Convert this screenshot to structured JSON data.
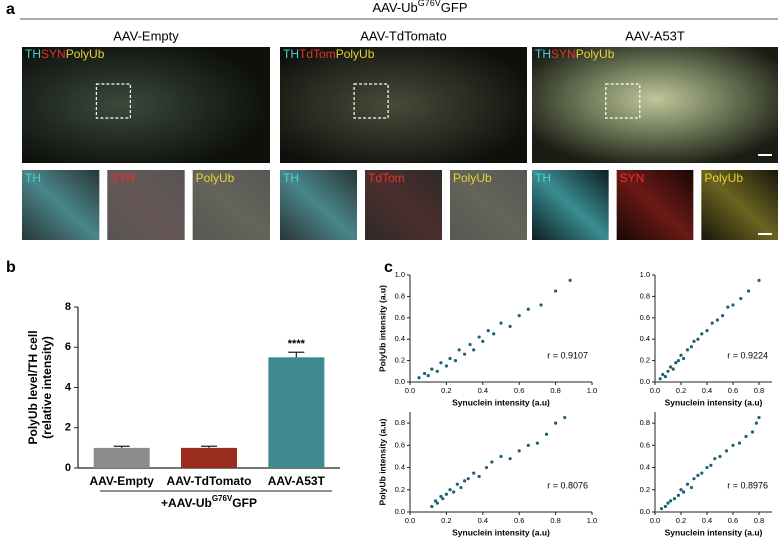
{
  "panel_a": {
    "label": "a",
    "header": "AAV-Ub",
    "header_sup": "G76V",
    "header_suffix": "GFP",
    "columns": [
      {
        "title": "AAV-Empty",
        "overlay": [
          "TH",
          "SYN",
          "PolyUb"
        ],
        "insets": [
          "TH",
          "SYN",
          "PolyUb"
        ]
      },
      {
        "title": "AAV-TdTomato",
        "overlay": [
          "TH",
          "TdTom",
          "PolyUb"
        ],
        "insets": [
          "TH",
          "TdTom",
          "PolyUb"
        ]
      },
      {
        "title": "AAV-A53T",
        "overlay": [
          "TH",
          "SYN",
          "PolyUb"
        ],
        "insets": [
          "TH",
          "SYN",
          "PolyUb"
        ]
      }
    ]
  },
  "chart_data": [
    {
      "type": "bar",
      "label": "b",
      "y_label": [
        "PolyUb level/TH cell",
        "(relative intensity)"
      ],
      "categories": [
        "AAV-Empty",
        "AAV-TdTomato",
        "AAV-A53T"
      ],
      "values": [
        1.0,
        1.0,
        5.5
      ],
      "errors": [
        0.08,
        0.08,
        0.25
      ],
      "colors": [
        "#8c8c8c",
        "#9b2d1f",
        "#3e8a8f"
      ],
      "annotations": [
        null,
        null,
        "****"
      ],
      "group_label": "+AAV-Ub",
      "group_label_sup": "G76V",
      "group_label_suffix": "GFP",
      "ylim": [
        0,
        8
      ],
      "yticks": [
        0,
        2,
        4,
        6,
        8
      ]
    },
    {
      "type": "scatter",
      "label": "c",
      "x_label": "Synuclein intensity (a.u)",
      "y_label": "PolyUb intensity (a.u)",
      "annotation": "r = 0.9107",
      "color": "#1f5f7a",
      "x": [
        0.05,
        0.08,
        0.1,
        0.12,
        0.15,
        0.17,
        0.2,
        0.22,
        0.25,
        0.27,
        0.3,
        0.33,
        0.35,
        0.38,
        0.4,
        0.43,
        0.46,
        0.5,
        0.55,
        0.6,
        0.65,
        0.72,
        0.8,
        0.88
      ],
      "y": [
        0.04,
        0.08,
        0.06,
        0.12,
        0.1,
        0.18,
        0.15,
        0.22,
        0.2,
        0.3,
        0.26,
        0.35,
        0.3,
        0.42,
        0.38,
        0.48,
        0.45,
        0.55,
        0.52,
        0.62,
        0.68,
        0.72,
        0.85,
        0.95
      ],
      "xlim": [
        0,
        1
      ],
      "xticks": [
        {
          "value": 0,
          "label": "0.0"
        },
        0.2,
        0.4,
        0.6,
        0.8,
        {
          "value": 1,
          "label": "1.0"
        }
      ],
      "ylim": [
        0,
        1
      ],
      "yticks": [
        {
          "value": 0,
          "label": "0.0"
        },
        0.2,
        0.4,
        0.6,
        0.8,
        {
          "value": 1,
          "label": "1.0"
        }
      ]
    },
    {
      "type": "scatter",
      "x_label": "Synuclein intensity (a.u)",
      "annotation": "r = 0.9224",
      "color": "#1f5f7a",
      "x": [
        0.04,
        0.06,
        0.08,
        0.1,
        0.12,
        0.14,
        0.16,
        0.18,
        0.2,
        0.22,
        0.25,
        0.28,
        0.3,
        0.33,
        0.36,
        0.4,
        0.44,
        0.48,
        0.52,
        0.56,
        0.6,
        0.66,
        0.72,
        0.8
      ],
      "y": [
        0.03,
        0.07,
        0.05,
        0.1,
        0.14,
        0.12,
        0.18,
        0.2,
        0.25,
        0.22,
        0.3,
        0.33,
        0.38,
        0.4,
        0.45,
        0.48,
        0.55,
        0.58,
        0.62,
        0.7,
        0.72,
        0.78,
        0.85,
        0.95
      ],
      "xlim": [
        0,
        0.9
      ],
      "xticks": [
        {
          "value": 0,
          "label": "0.0"
        },
        0.2,
        0.4,
        0.6,
        0.8
      ],
      "ylim": [
        0,
        1
      ],
      "yticks": [
        {
          "value": 0,
          "label": "0.0"
        },
        0.2,
        0.4,
        0.6,
        0.8,
        {
          "value": 1,
          "label": "1.0"
        }
      ]
    },
    {
      "type": "scatter",
      "x_label": "Synuclein intensity (a.u)",
      "y_label": "PolyUb intensity (a.u)",
      "annotation": "r = 0.8076",
      "color": "#1f5f7a",
      "x": [
        0.12,
        0.14,
        0.15,
        0.17,
        0.18,
        0.2,
        0.22,
        0.24,
        0.26,
        0.28,
        0.3,
        0.32,
        0.35,
        0.38,
        0.42,
        0.45,
        0.5,
        0.55,
        0.6,
        0.65,
        0.7,
        0.75,
        0.8,
        0.85
      ],
      "y": [
        0.05,
        0.1,
        0.08,
        0.14,
        0.12,
        0.16,
        0.2,
        0.18,
        0.25,
        0.22,
        0.28,
        0.3,
        0.35,
        0.32,
        0.4,
        0.45,
        0.5,
        0.48,
        0.55,
        0.6,
        0.62,
        0.7,
        0.8,
        0.85
      ],
      "xlim": [
        0,
        1
      ],
      "xticks": [
        {
          "value": 0,
          "label": "0.0"
        },
        0.2,
        0.4,
        0.6,
        0.8,
        {
          "value": 1,
          "label": "1.0"
        }
      ],
      "ylim": [
        0,
        0.9
      ],
      "yticks": [
        {
          "value": 0,
          "label": "0.0"
        },
        0.2,
        0.4,
        0.6,
        0.8
      ]
    },
    {
      "type": "scatter",
      "x_label": "Synuclein intensity (a.u)",
      "annotation": "r = 0.8976",
      "color": "#1f5f7a",
      "x": [
        0.05,
        0.08,
        0.1,
        0.12,
        0.15,
        0.18,
        0.2,
        0.22,
        0.25,
        0.28,
        0.3,
        0.33,
        0.36,
        0.4,
        0.43,
        0.46,
        0.5,
        0.55,
        0.6,
        0.65,
        0.7,
        0.75,
        0.78,
        0.8
      ],
      "y": [
        0.03,
        0.05,
        0.08,
        0.1,
        0.12,
        0.15,
        0.2,
        0.18,
        0.25,
        0.22,
        0.3,
        0.33,
        0.35,
        0.4,
        0.42,
        0.48,
        0.5,
        0.55,
        0.6,
        0.62,
        0.68,
        0.72,
        0.8,
        0.85
      ],
      "xlim": [
        0,
        0.9
      ],
      "xticks": [
        {
          "value": 0,
          "label": "0.0"
        },
        0.2,
        0.4,
        0.6,
        0.8
      ],
      "ylim": [
        0,
        0.9
      ],
      "yticks": [
        {
          "value": 0,
          "label": "0.0"
        },
        0.2,
        0.4,
        0.6,
        0.8
      ]
    }
  ]
}
